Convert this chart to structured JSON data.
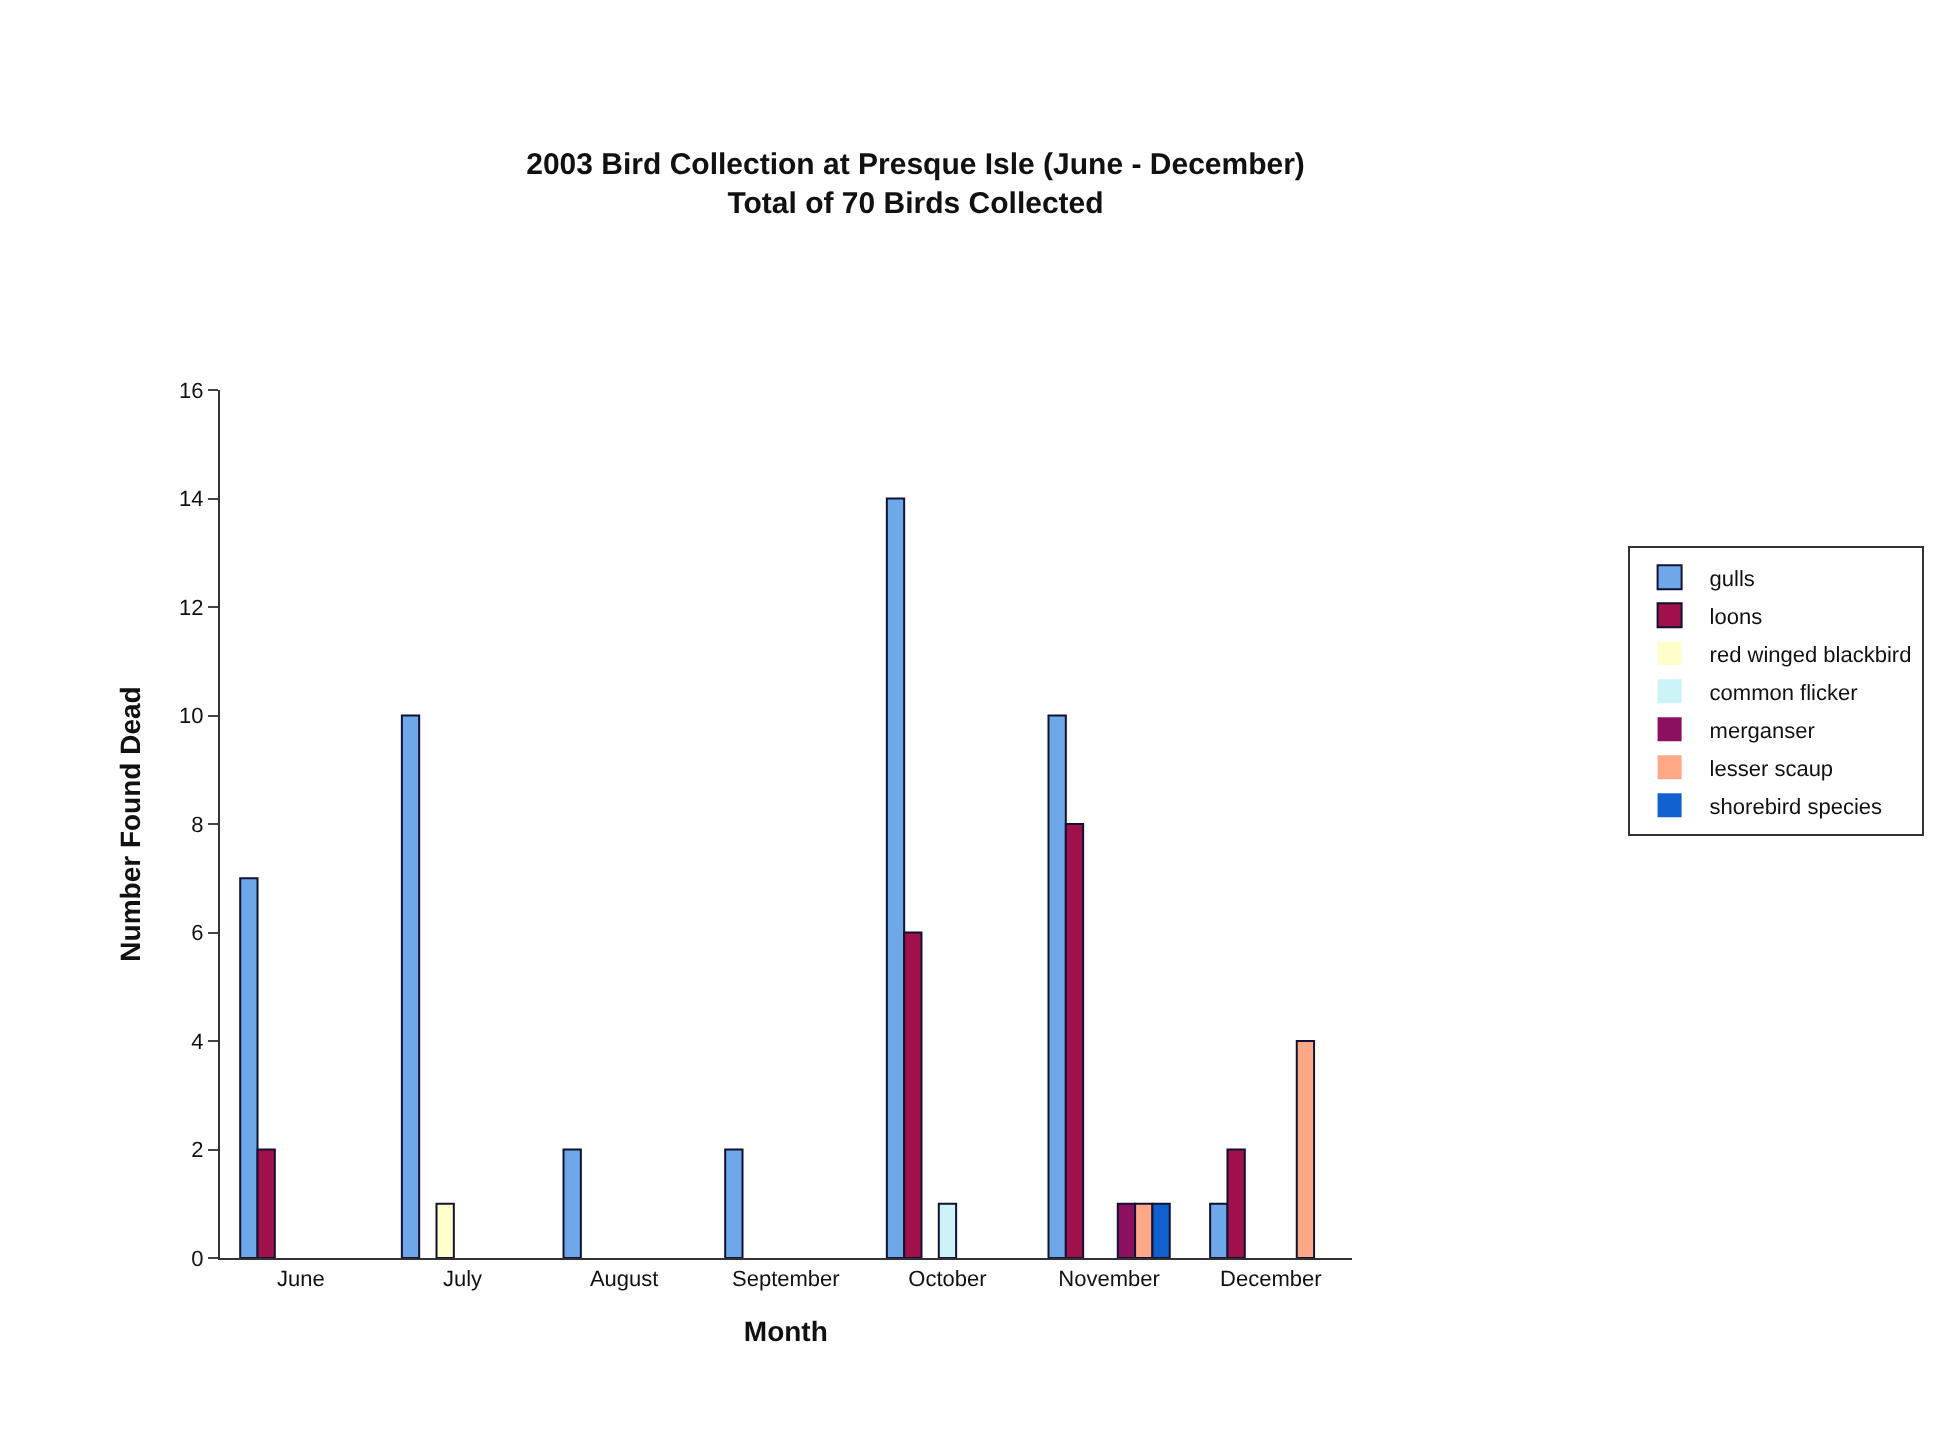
{
  "chart_data": {
    "type": "bar",
    "title": "2003 Bird Collection at Presque Isle (June - December)",
    "subtitle": "Total of 70 Birds Collected",
    "xlabel": "Month",
    "ylabel": "Number Found Dead",
    "categories": [
      "June",
      "July",
      "August",
      "September",
      "October",
      "November",
      "December"
    ],
    "series": [
      {
        "name": "gulls",
        "color": "#6fa8e8",
        "values": [
          7,
          10,
          2,
          2,
          14,
          10,
          1
        ]
      },
      {
        "name": "loons",
        "color": "#a0104a",
        "values": [
          2,
          0,
          0,
          0,
          6,
          8,
          2
        ]
      },
      {
        "name": "red winged blackbird",
        "color": "#ffffcc",
        "values": [
          0,
          1,
          0,
          0,
          0,
          0,
          0
        ]
      },
      {
        "name": "common flicker",
        "color": "#ccf4f8",
        "values": [
          0,
          0,
          0,
          0,
          1,
          0,
          0
        ]
      },
      {
        "name": "merganser",
        "color": "#8c1060",
        "values": [
          0,
          0,
          0,
          0,
          0,
          1,
          0
        ]
      },
      {
        "name": "lesser scaup",
        "color": "#ffa888",
        "values": [
          0,
          0,
          0,
          0,
          0,
          1,
          4
        ]
      },
      {
        "name": "shorebird species",
        "color": "#1060d0",
        "values": [
          0,
          0,
          0,
          0,
          0,
          1,
          0
        ]
      }
    ],
    "ylim": [
      0,
      16
    ],
    "yticks": [
      0,
      2,
      4,
      6,
      8,
      10,
      12,
      14,
      16
    ],
    "grid": false,
    "legend": "right"
  }
}
